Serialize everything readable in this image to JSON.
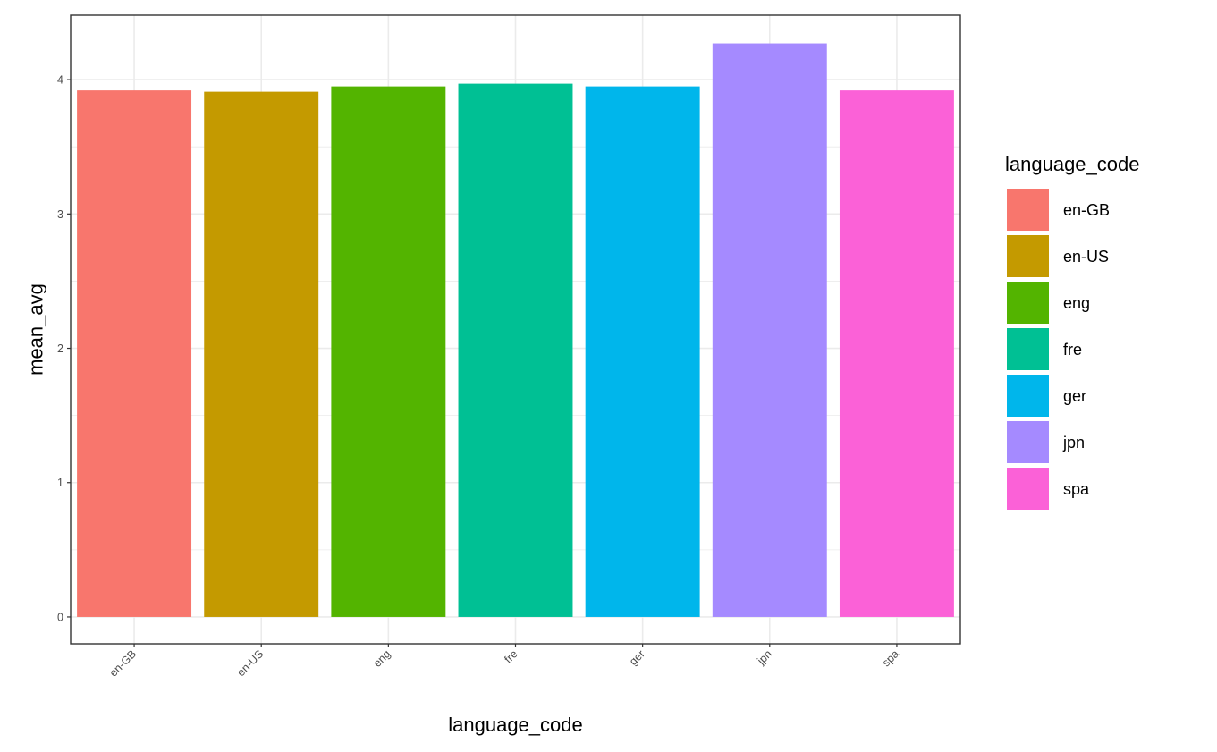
{
  "chart_data": {
    "type": "bar",
    "categories": [
      "en-GB",
      "en-US",
      "eng",
      "fre",
      "ger",
      "jpn",
      "spa"
    ],
    "values": [
      3.92,
      3.91,
      3.95,
      3.97,
      3.95,
      4.27,
      3.92
    ],
    "colors": [
      "#F8766D",
      "#C49A00",
      "#53B400",
      "#00C094",
      "#00B6EB",
      "#A58AFF",
      "#FB61D7"
    ],
    "xlabel": "language_code",
    "ylabel": "mean_avg",
    "ylim": [
      -0.2,
      4.48
    ],
    "yticks": [
      0,
      1,
      2,
      3,
      4
    ],
    "ytick_labels": [
      "0",
      "1",
      "2",
      "3",
      "4"
    ],
    "grid": true,
    "legend": {
      "title": "language_code",
      "position": "right",
      "entries": [
        "en-GB",
        "en-US",
        "eng",
        "fre",
        "ger",
        "jpn",
        "spa"
      ]
    }
  }
}
